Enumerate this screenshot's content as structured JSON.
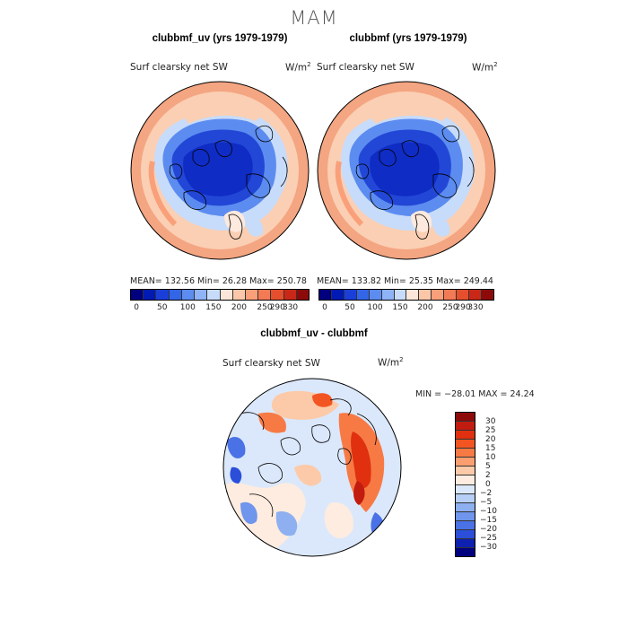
{
  "figure": {
    "title": "MAM"
  },
  "panels": [
    {
      "title": "clubbmf_uv (yrs 1979-1979)",
      "variable": "Surf clearsky net SW",
      "unit_base": "W/m",
      "unit_exp": "2",
      "stats": "MEAN= 132.56   Min=   26.28   Max= 250.78"
    },
    {
      "title": "clubbmf (yrs 1979-1979)",
      "variable": "Surf clearsky net SW",
      "unit_base": "W/m",
      "unit_exp": "2",
      "stats": "MEAN= 133.82   Min=   25.35   Max= 249.44"
    },
    {
      "title": "clubbmf_uv - clubbmf",
      "variable": "Surf clearsky net SW",
      "unit_base": "W/m",
      "unit_exp": "2",
      "stats": "MIN = −28.01  MAX =   24.24"
    }
  ],
  "colorbar_abs": {
    "colors": [
      "#00007f",
      "#001ab3",
      "#1a3fd9",
      "#3366e6",
      "#5c8cf0",
      "#8fb3f7",
      "#c7dcfa",
      "#fbe6d9",
      "#fcc7a8",
      "#f9a07a",
      "#f27a55",
      "#e64f2e",
      "#c92818",
      "#8c0a0a"
    ],
    "labels": [
      "0",
      "50",
      "100",
      "150",
      "200",
      "250",
      "290",
      "330"
    ]
  },
  "colorbar_diff": {
    "colors": [
      "#8c0a0a",
      "#c21b0f",
      "#e0300f",
      "#f25522",
      "#f77a45",
      "#fb9e70",
      "#fccaa8",
      "#fdecdf",
      "#dbe8fb",
      "#b7cff6",
      "#8eb0f1",
      "#6f95ec",
      "#4a72e6",
      "#2b4fd9",
      "#0d20b0",
      "#00007f"
    ],
    "labels": [
      "30",
      "25",
      "20",
      "15",
      "10",
      "5",
      "2",
      "0",
      "−2",
      "−5",
      "−10",
      "−15",
      "−20",
      "−25",
      "−30"
    ]
  },
  "chart_data": [
    {
      "type": "heatmap",
      "title": "clubbmf_uv (yrs 1979-1979)",
      "projection": "north-polar-stereographic",
      "variable": "Surf clearsky net SW",
      "units": "W/m2",
      "mean": 132.56,
      "min": 26.28,
      "max": 250.78,
      "colorbar_ticks": [
        0,
        50,
        100,
        150,
        200,
        250,
        290,
        330
      ]
    },
    {
      "type": "heatmap",
      "title": "clubbmf (yrs 1979-1979)",
      "projection": "north-polar-stereographic",
      "variable": "Surf clearsky net SW",
      "units": "W/m2",
      "mean": 133.82,
      "min": 25.35,
      "max": 249.44,
      "colorbar_ticks": [
        0,
        50,
        100,
        150,
        200,
        250,
        290,
        330
      ]
    },
    {
      "type": "heatmap",
      "title": "clubbmf_uv - clubbmf",
      "projection": "north-polar-stereographic",
      "variable": "Surf clearsky net SW",
      "units": "W/m2",
      "min": -28.01,
      "max": 24.24,
      "colorbar_ticks": [
        30,
        25,
        20,
        15,
        10,
        5,
        2,
        0,
        -2,
        -5,
        -10,
        -15,
        -20,
        -25,
        -30
      ]
    }
  ]
}
